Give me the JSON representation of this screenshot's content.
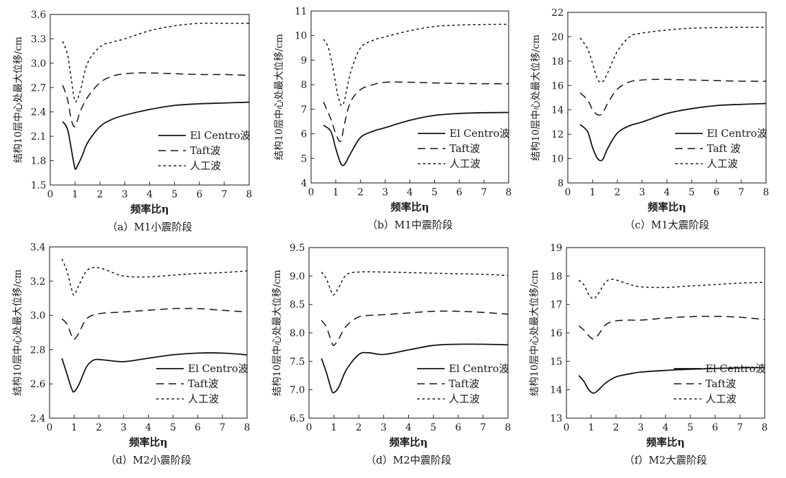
{
  "chart_data": [
    {
      "type": "line",
      "caption": "（a）M1小震阶段",
      "xlabel": "频率比η",
      "ylabel": "结构10层中心处最大位移/cm",
      "xlim": [
        0,
        8
      ],
      "ylim": [
        1.5,
        3.6
      ],
      "xticks": [
        0,
        1,
        2,
        3,
        4,
        5,
        6,
        7,
        8
      ],
      "yticks": [
        "1.5",
        "1.8",
        "2.1",
        "2.4",
        "2.7",
        "3.0",
        "3.3",
        "3.6"
      ],
      "legend_position": "bottom-right",
      "series": [
        {
          "name": "El Centro波",
          "style": "solid",
          "x": [
            0.5,
            0.7,
            0.9,
            1.0,
            1.1,
            1.3,
            1.5,
            2.0,
            2.5,
            3,
            4,
            5,
            6,
            7,
            8
          ],
          "y": [
            2.28,
            2.18,
            1.85,
            1.7,
            1.74,
            1.87,
            2.02,
            2.22,
            2.31,
            2.36,
            2.43,
            2.48,
            2.5,
            2.51,
            2.52
          ]
        },
        {
          "name": "Taft波",
          "style": "dashed",
          "x": [
            0.5,
            0.7,
            0.85,
            1.0,
            1.2,
            1.5,
            2.0,
            2.5,
            3,
            3.5,
            4,
            5,
            6,
            7,
            8
          ],
          "y": [
            2.73,
            2.55,
            2.3,
            2.22,
            2.4,
            2.58,
            2.76,
            2.84,
            2.87,
            2.88,
            2.88,
            2.87,
            2.86,
            2.86,
            2.85
          ]
        },
        {
          "name": "人工波",
          "style": "dotted",
          "x": [
            0.5,
            0.7,
            0.85,
            1.0,
            1.2,
            1.5,
            2.0,
            2.5,
            3,
            4,
            5,
            6,
            7,
            8
          ],
          "y": [
            3.27,
            3.1,
            2.8,
            2.53,
            2.65,
            3.0,
            3.2,
            3.26,
            3.3,
            3.4,
            3.46,
            3.49,
            3.49,
            3.49
          ]
        }
      ]
    },
    {
      "type": "line",
      "caption": "（b）M1中震阶段",
      "xlabel": "频率比η",
      "ylabel": "结构10层中心处最大位移/cm",
      "xlim": [
        0,
        8
      ],
      "ylim": [
        4,
        11
      ],
      "xticks": [
        0,
        1,
        2,
        3,
        4,
        5,
        6,
        7,
        8
      ],
      "yticks": [
        "4",
        "5",
        "6",
        "7",
        "8",
        "9",
        "10",
        "11"
      ],
      "legend_position": "bottom-right",
      "series": [
        {
          "name": "El Centro波",
          "style": "solid",
          "x": [
            0.5,
            0.8,
            1.0,
            1.2,
            1.35,
            1.6,
            2.0,
            2.5,
            3,
            4,
            5,
            6,
            7,
            8
          ],
          "y": [
            6.35,
            6.1,
            5.4,
            4.8,
            4.75,
            5.2,
            5.85,
            6.1,
            6.25,
            6.55,
            6.75,
            6.83,
            6.86,
            6.87
          ]
        },
        {
          "name": "Taft波",
          "style": "dashed",
          "x": [
            0.5,
            0.8,
            1.0,
            1.2,
            1.35,
            1.6,
            2.0,
            2.5,
            3,
            4,
            5,
            6,
            7,
            8
          ],
          "y": [
            7.3,
            6.6,
            6.0,
            5.7,
            6.4,
            7.3,
            7.8,
            8.0,
            8.1,
            8.1,
            8.07,
            8.05,
            8.04,
            8.04
          ]
        },
        {
          "name": "人工波",
          "style": "dotted",
          "x": [
            0.5,
            0.7,
            0.9,
            1.1,
            1.3,
            1.6,
            2.0,
            2.5,
            3,
            4,
            5,
            6,
            7,
            8
          ],
          "y": [
            9.85,
            9.5,
            8.6,
            7.5,
            7.2,
            8.5,
            9.5,
            9.8,
            9.95,
            10.2,
            10.37,
            10.43,
            10.45,
            10.46
          ]
        }
      ]
    },
    {
      "type": "line",
      "caption": "（c）M1大震阶段",
      "xlabel": "频率比η",
      "ylabel": "结构10层中心处最大位移/cm",
      "xlim": [
        0,
        8
      ],
      "ylim": [
        8,
        22
      ],
      "xticks": [
        0,
        1,
        2,
        3,
        4,
        5,
        6,
        7,
        8
      ],
      "yticks": [
        "8",
        "10",
        "12",
        "14",
        "16",
        "18",
        "20",
        "22"
      ],
      "legend_position": "bottom-right",
      "series": [
        {
          "name": "El Centro波",
          "style": "solid",
          "x": [
            0.5,
            0.8,
            1.0,
            1.2,
            1.4,
            1.6,
            2.0,
            2.5,
            3,
            4,
            5,
            6,
            7,
            8
          ],
          "y": [
            12.8,
            12.2,
            10.9,
            10.0,
            9.9,
            10.8,
            12.1,
            12.7,
            13.0,
            13.7,
            14.1,
            14.35,
            14.45,
            14.52
          ]
        },
        {
          "name": "Taft 波",
          "style": "dashed",
          "x": [
            0.5,
            0.8,
            1.0,
            1.2,
            1.4,
            1.6,
            2.0,
            2.5,
            3,
            3.5,
            4,
            5,
            6,
            7,
            8
          ],
          "y": [
            15.4,
            14.8,
            14.0,
            13.6,
            13.7,
            14.5,
            15.7,
            16.3,
            16.45,
            16.5,
            16.5,
            16.45,
            16.4,
            16.35,
            16.35
          ]
        },
        {
          "name": "人工波",
          "style": "dotted",
          "x": [
            0.5,
            0.8,
            1.0,
            1.2,
            1.4,
            1.6,
            2.0,
            2.5,
            3,
            4,
            5,
            6,
            7,
            8
          ],
          "y": [
            19.9,
            19.0,
            17.8,
            16.5,
            16.3,
            17.0,
            18.8,
            20.0,
            20.3,
            20.55,
            20.7,
            20.75,
            20.78,
            20.78
          ]
        }
      ]
    },
    {
      "type": "line",
      "caption": "（d）M2小震阶段",
      "xlabel": "频率比η",
      "ylabel": "结构10层中心处最大位移/cm",
      "xlim": [
        0,
        8
      ],
      "ylim": [
        2.4,
        3.4
      ],
      "xticks": [
        0,
        1,
        2,
        3,
        4,
        5,
        6,
        7,
        8
      ],
      "yticks": [
        "2.4",
        "2.6",
        "2.8",
        "3.0",
        "3.2",
        "3.4"
      ],
      "legend_position": "bottom-right",
      "series": [
        {
          "name": "El Centro波",
          "style": "solid",
          "x": [
            0.5,
            0.7,
            0.9,
            1.0,
            1.2,
            1.5,
            1.8,
            2.2,
            3,
            4,
            5,
            6,
            7,
            8
          ],
          "y": [
            2.75,
            2.66,
            2.57,
            2.555,
            2.6,
            2.7,
            2.74,
            2.74,
            2.73,
            2.75,
            2.77,
            2.78,
            2.78,
            2.77
          ]
        },
        {
          "name": "Taft波",
          "style": "dashed",
          "x": [
            0.5,
            0.7,
            0.9,
            1.0,
            1.2,
            1.5,
            2.0,
            3,
            4,
            5,
            5.5,
            6,
            7,
            8
          ],
          "y": [
            2.98,
            2.95,
            2.88,
            2.86,
            2.9,
            2.98,
            3.01,
            3.02,
            3.03,
            3.04,
            3.04,
            3.04,
            3.03,
            3.02
          ]
        },
        {
          "name": "人工波",
          "style": "dotted",
          "x": [
            0.5,
            0.7,
            0.9,
            1.0,
            1.2,
            1.5,
            1.8,
            2.2,
            3,
            4,
            5,
            6,
            7,
            8
          ],
          "y": [
            3.33,
            3.26,
            3.15,
            3.12,
            3.18,
            3.26,
            3.28,
            3.27,
            3.23,
            3.225,
            3.235,
            3.245,
            3.25,
            3.26
          ]
        }
      ]
    },
    {
      "type": "line",
      "caption": "（d）M2中震阶段",
      "xlabel": "频率比η",
      "ylabel": "结构10层中心处最大位移/cm",
      "xlim": [
        0,
        8
      ],
      "ylim": [
        6.5,
        9.5
      ],
      "xticks": [
        0,
        1,
        2,
        3,
        4,
        5,
        6,
        7,
        8
      ],
      "yticks": [
        "6.5",
        "7.0",
        "7.5",
        "8.0",
        "8.5",
        "9.0",
        "9.5"
      ],
      "legend_position": "bottom-right",
      "series": [
        {
          "name": "El Centro波",
          "style": "solid",
          "x": [
            0.5,
            0.7,
            0.9,
            1.0,
            1.2,
            1.5,
            2.0,
            2.4,
            3,
            4,
            5,
            6,
            7,
            8
          ],
          "y": [
            7.55,
            7.3,
            7.0,
            6.95,
            7.05,
            7.35,
            7.62,
            7.65,
            7.62,
            7.7,
            7.78,
            7.8,
            7.8,
            7.79
          ]
        },
        {
          "name": "Taft波",
          "style": "dashed",
          "x": [
            0.5,
            0.7,
            0.9,
            1.0,
            1.2,
            1.5,
            2.0,
            2.5,
            3,
            4,
            5,
            6,
            7,
            8
          ],
          "y": [
            8.22,
            8.1,
            7.85,
            7.78,
            7.9,
            8.12,
            8.28,
            8.31,
            8.32,
            8.35,
            8.38,
            8.38,
            8.36,
            8.33
          ]
        },
        {
          "name": "人工波",
          "style": "dotted",
          "x": [
            0.5,
            0.7,
            0.9,
            1.0,
            1.2,
            1.5,
            2.0,
            3,
            4,
            5,
            6,
            7,
            8
          ],
          "y": [
            9.07,
            8.95,
            8.72,
            8.67,
            8.8,
            9.02,
            9.07,
            9.07,
            9.06,
            9.05,
            9.04,
            9.03,
            9.01
          ]
        }
      ]
    },
    {
      "type": "line",
      "caption": "（f）M2大震阶段",
      "xlabel": "频率比η",
      "ylabel": "结构10层中心处最大位移/cm",
      "xlim": [
        0,
        8
      ],
      "ylim": [
        13,
        19
      ],
      "xticks": [
        0,
        1,
        2,
        3,
        4,
        5,
        6,
        7,
        8
      ],
      "yticks": [
        "13",
        "14",
        "15",
        "16",
        "17",
        "18",
        "19"
      ],
      "legend_position": "bottom-right",
      "series": [
        {
          "name": "El Centro波",
          "style": "solid",
          "x": [
            0.5,
            0.7,
            0.9,
            1.1,
            1.3,
            1.6,
            2.0,
            2.5,
            3,
            4,
            5,
            6,
            7,
            8
          ],
          "y": [
            14.5,
            14.3,
            14.0,
            13.88,
            14.0,
            14.25,
            14.45,
            14.55,
            14.62,
            14.68,
            14.72,
            14.75,
            14.77,
            14.78
          ]
        },
        {
          "name": "Taft波",
          "style": "dashed",
          "x": [
            0.5,
            0.7,
            0.9,
            1.1,
            1.3,
            1.6,
            2.0,
            2.5,
            3,
            4,
            5,
            6,
            7,
            8
          ],
          "y": [
            16.25,
            16.1,
            15.9,
            15.78,
            15.95,
            16.3,
            16.42,
            16.45,
            16.45,
            16.52,
            16.57,
            16.58,
            16.55,
            16.47
          ]
        },
        {
          "name": "人工波",
          "style": "dotted",
          "x": [
            0.5,
            0.7,
            0.9,
            1.1,
            1.3,
            1.6,
            1.9,
            2.5,
            3,
            4,
            5,
            6,
            7,
            8
          ],
          "y": [
            17.85,
            17.7,
            17.35,
            17.2,
            17.4,
            17.8,
            17.88,
            17.72,
            17.62,
            17.6,
            17.65,
            17.7,
            17.75,
            17.78
          ]
        }
      ]
    }
  ]
}
